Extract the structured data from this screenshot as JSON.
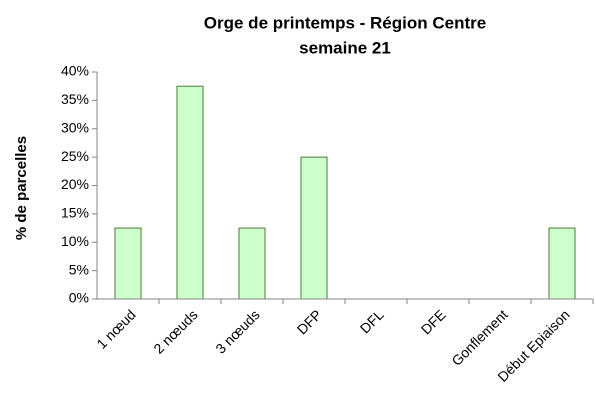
{
  "chart_data": {
    "type": "bar",
    "title": "Orge de printemps - Région Centre",
    "subtitle": "semaine 21",
    "y_label": "% de parcelles",
    "categories": [
      "1 nœud",
      "2 nœuds",
      "3 nœuds",
      "DFP",
      "DFL",
      "DFE",
      "Gonflement",
      "Début Epiaison"
    ],
    "values": [
      12.5,
      37.5,
      12.5,
      25,
      0,
      0,
      0,
      12.5
    ],
    "color": "#ccffcc",
    "ylim": [
      0,
      40
    ],
    "yticks": [
      {
        "value": 0,
        "label": "0%"
      },
      {
        "value": 5,
        "label": "5%"
      },
      {
        "value": 10,
        "label": "10%"
      },
      {
        "value": 15,
        "label": "15%"
      },
      {
        "value": 20,
        "label": "20%"
      },
      {
        "value": 25,
        "label": "25%"
      },
      {
        "value": 30,
        "label": "30%"
      },
      {
        "value": 35,
        "label": "35%"
      },
      {
        "value": 40,
        "label": "40%"
      }
    ],
    "grid": false
  }
}
